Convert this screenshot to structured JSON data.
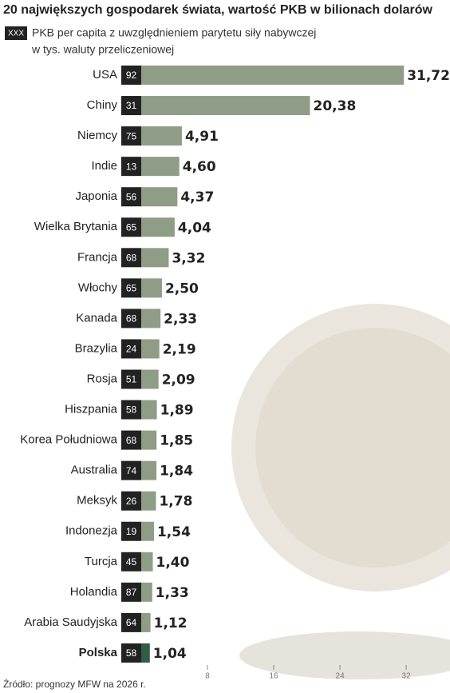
{
  "chart_data": {
    "type": "hbar",
    "title": "20 największych gospodarek świata, wartość PKB w bilionach dolarów",
    "legend_badge": "XXX",
    "legend_text": [
      "PKB per capita z uwzględnieniem parytetu siły nabywczej",
      "w tys. waluty przeliczeniowej"
    ],
    "source": "Źródło: prognozy MFW na 2026 r.",
    "categories": [
      "USA",
      "Chiny",
      "Niemcy",
      "Indie",
      "Japonia",
      "Wielka Brytania",
      "Francja",
      "Włochy",
      "Kanada",
      "Brazylia",
      "Rosja",
      "Hiszpania",
      "Korea Południowa",
      "Australia",
      "Meksyk",
      "Indonezja",
      "Turcja",
      "Holandia",
      "Arabia Saudyjska",
      "Polska"
    ],
    "values": [
      31.72,
      20.38,
      4.91,
      4.6,
      4.37,
      4.04,
      3.32,
      2.5,
      2.33,
      2.19,
      2.09,
      1.89,
      1.85,
      1.84,
      1.78,
      1.54,
      1.4,
      1.33,
      1.12,
      1.04
    ],
    "value_labels": [
      "31,72",
      "20,38",
      "4,91",
      "4,60",
      "4,37",
      "4,04",
      "3,32",
      "2,50",
      "2,33",
      "2,19",
      "2,09",
      "1,89",
      "1,85",
      "1,84",
      "1,78",
      "1,54",
      "1,40",
      "1,33",
      "1,12",
      "1,04"
    ],
    "per_capita": [
      92,
      31,
      75,
      13,
      56,
      65,
      68,
      65,
      68,
      24,
      51,
      58,
      68,
      74,
      26,
      19,
      45,
      87,
      64,
      58
    ],
    "color": "#909d86",
    "highlight_index": 19,
    "highlight_color": "#2f5d45",
    "xlim": [
      0,
      37
    ],
    "xticks": [
      8,
      16,
      24,
      32
    ]
  }
}
